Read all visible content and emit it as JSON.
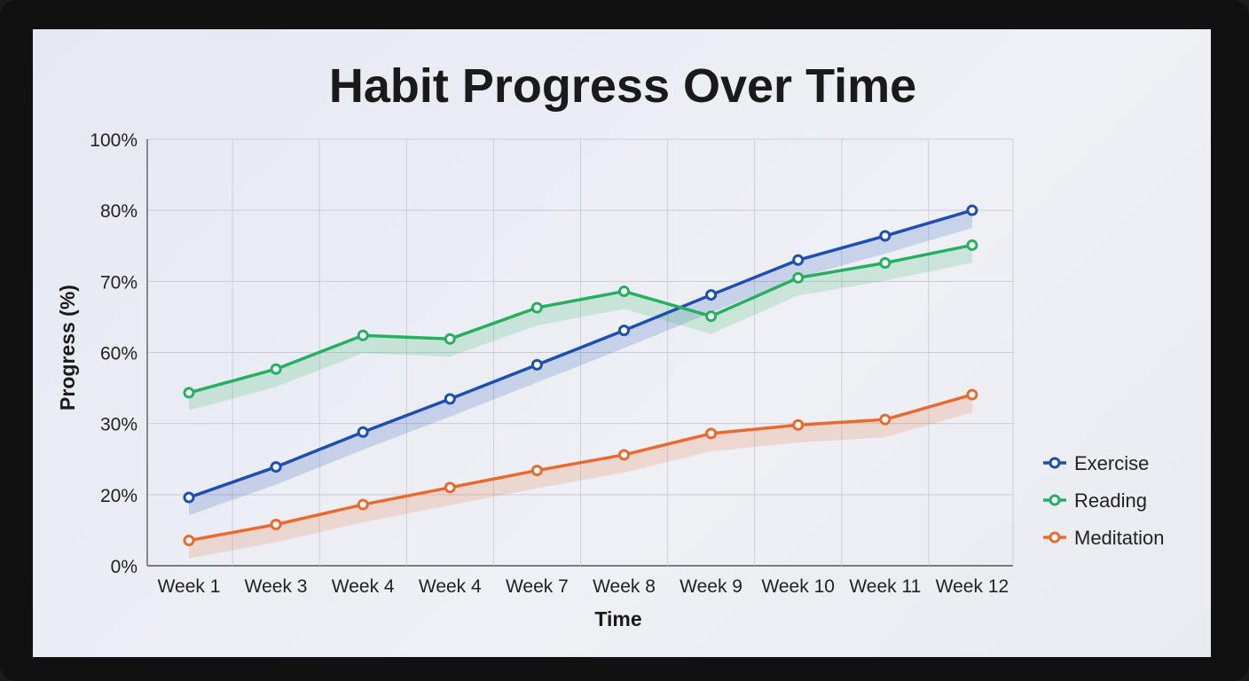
{
  "chart_data": {
    "type": "line",
    "title": "Habit Progress Over Time",
    "xlabel": "Time",
    "ylabel": "Progress (%)",
    "categories": [
      "Week 1",
      "Week 3",
      "Week 4",
      "Week 4",
      "Week 7",
      "Week 8",
      "Week 9",
      "Week 10",
      "Week 11",
      "Week 12"
    ],
    "y_ticks": [
      "0%",
      "20%",
      "30%",
      "60%",
      "70%",
      "80%",
      "100%"
    ],
    "y_tick_values": [
      0,
      20,
      30,
      60,
      70,
      80,
      100
    ],
    "grid": true,
    "legend_position": "right",
    "series": [
      {
        "name": "Exercise",
        "color": "#1d4fb3",
        "values": [
          19.2,
          23.9,
          28.8,
          40.4,
          54.8,
          63.1,
          68.1,
          73,
          76.4,
          80
        ]
      },
      {
        "name": "Reading",
        "color": "#25b05f",
        "values": [
          43,
          53,
          62.4,
          61.9,
          66.3,
          68.6,
          65.1,
          70.5,
          72.6,
          75.1
        ]
      },
      {
        "name": "Meditation",
        "color": "#ea6a2c",
        "values": [
          7.1,
          11.6,
          17.2,
          21,
          23.4,
          25.6,
          28.6,
          29.8,
          31.7,
          42.2
        ]
      }
    ]
  }
}
